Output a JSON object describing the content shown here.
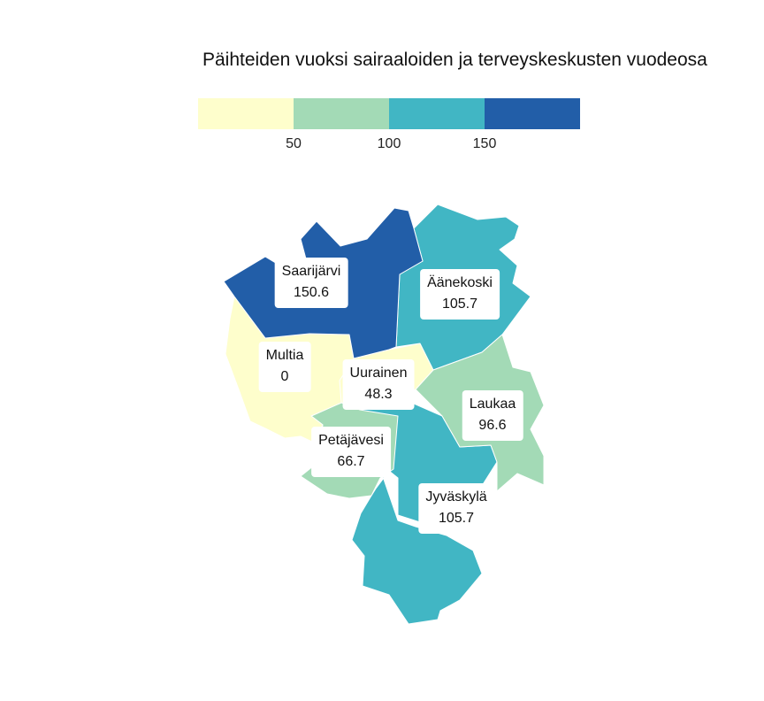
{
  "title": "Päihteiden vuoksi sairaaloiden ja terveyskeskusten vuodeosa",
  "legend": {
    "bins": [
      {
        "color": "#fefecc"
      },
      {
        "color": "#a3dab6"
      },
      {
        "color": "#41b6c4"
      },
      {
        "color": "#225ea8"
      }
    ],
    "ticks": [
      {
        "label": "50",
        "value": 50
      },
      {
        "label": "100",
        "value": 100
      },
      {
        "label": "150",
        "value": 150
      }
    ]
  },
  "municipalities": [
    {
      "name": "Saarijärvi",
      "value_label": "150.6",
      "value": 150.6,
      "color": "#225ea8"
    },
    {
      "name": "Äänekoski",
      "value_label": "105.7",
      "value": 105.7,
      "color": "#41b6c4"
    },
    {
      "name": "Multia",
      "value_label": "0",
      "value": 0,
      "color": "#fefecc"
    },
    {
      "name": "Uurainen",
      "value_label": "48.3",
      "value": 48.3,
      "color": "#fefecc"
    },
    {
      "name": "Laukaa",
      "value_label": "96.6",
      "value": 96.6,
      "color": "#a3dab6"
    },
    {
      "name": "Petäjävesi",
      "value_label": "66.7",
      "value": 66.7,
      "color": "#a3dab6"
    },
    {
      "name": "Jyväskylä",
      "value_label": "105.7",
      "value": 105.7,
      "color": "#41b6c4"
    }
  ]
}
